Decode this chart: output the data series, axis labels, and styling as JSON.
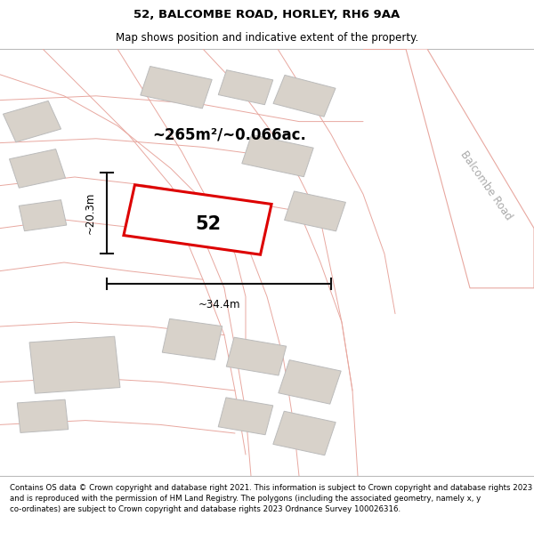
{
  "title": "52, BALCOMBE ROAD, HORLEY, RH6 9AA",
  "subtitle": "Map shows position and indicative extent of the property.",
  "footer": "Contains OS data © Crown copyright and database right 2021. This information is subject to Crown copyright and database rights 2023 and is reproduced with the permission of HM Land Registry. The polygons (including the associated geometry, namely x, y co-ordinates) are subject to Crown copyright and database rights 2023 Ordnance Survey 100026316.",
  "area_label": "~265m²/~0.066ac.",
  "width_label": "~34.4m",
  "height_label": "~20.3m",
  "plot_number": "52",
  "road_label": "Balcombe Road",
  "bg_color": "#f2eeea",
  "plot_edge_color": "#dd0000",
  "building_color": "#d8d2ca",
  "building_edge": "#bbbbbb",
  "road_line_color": "#e8a8a0",
  "road_fill_color": "#ffffff",
  "dim_color": "#111111",
  "text_color": "#222222",
  "road_label_color": "#aaaaaa",
  "title_fontsize": 9.5,
  "subtitle_fontsize": 8.5,
  "footer_fontsize": 6.2,
  "area_fontsize": 12,
  "dim_fontsize": 8.5,
  "plot_num_fontsize": 15,
  "road_label_fontsize": 8.5
}
